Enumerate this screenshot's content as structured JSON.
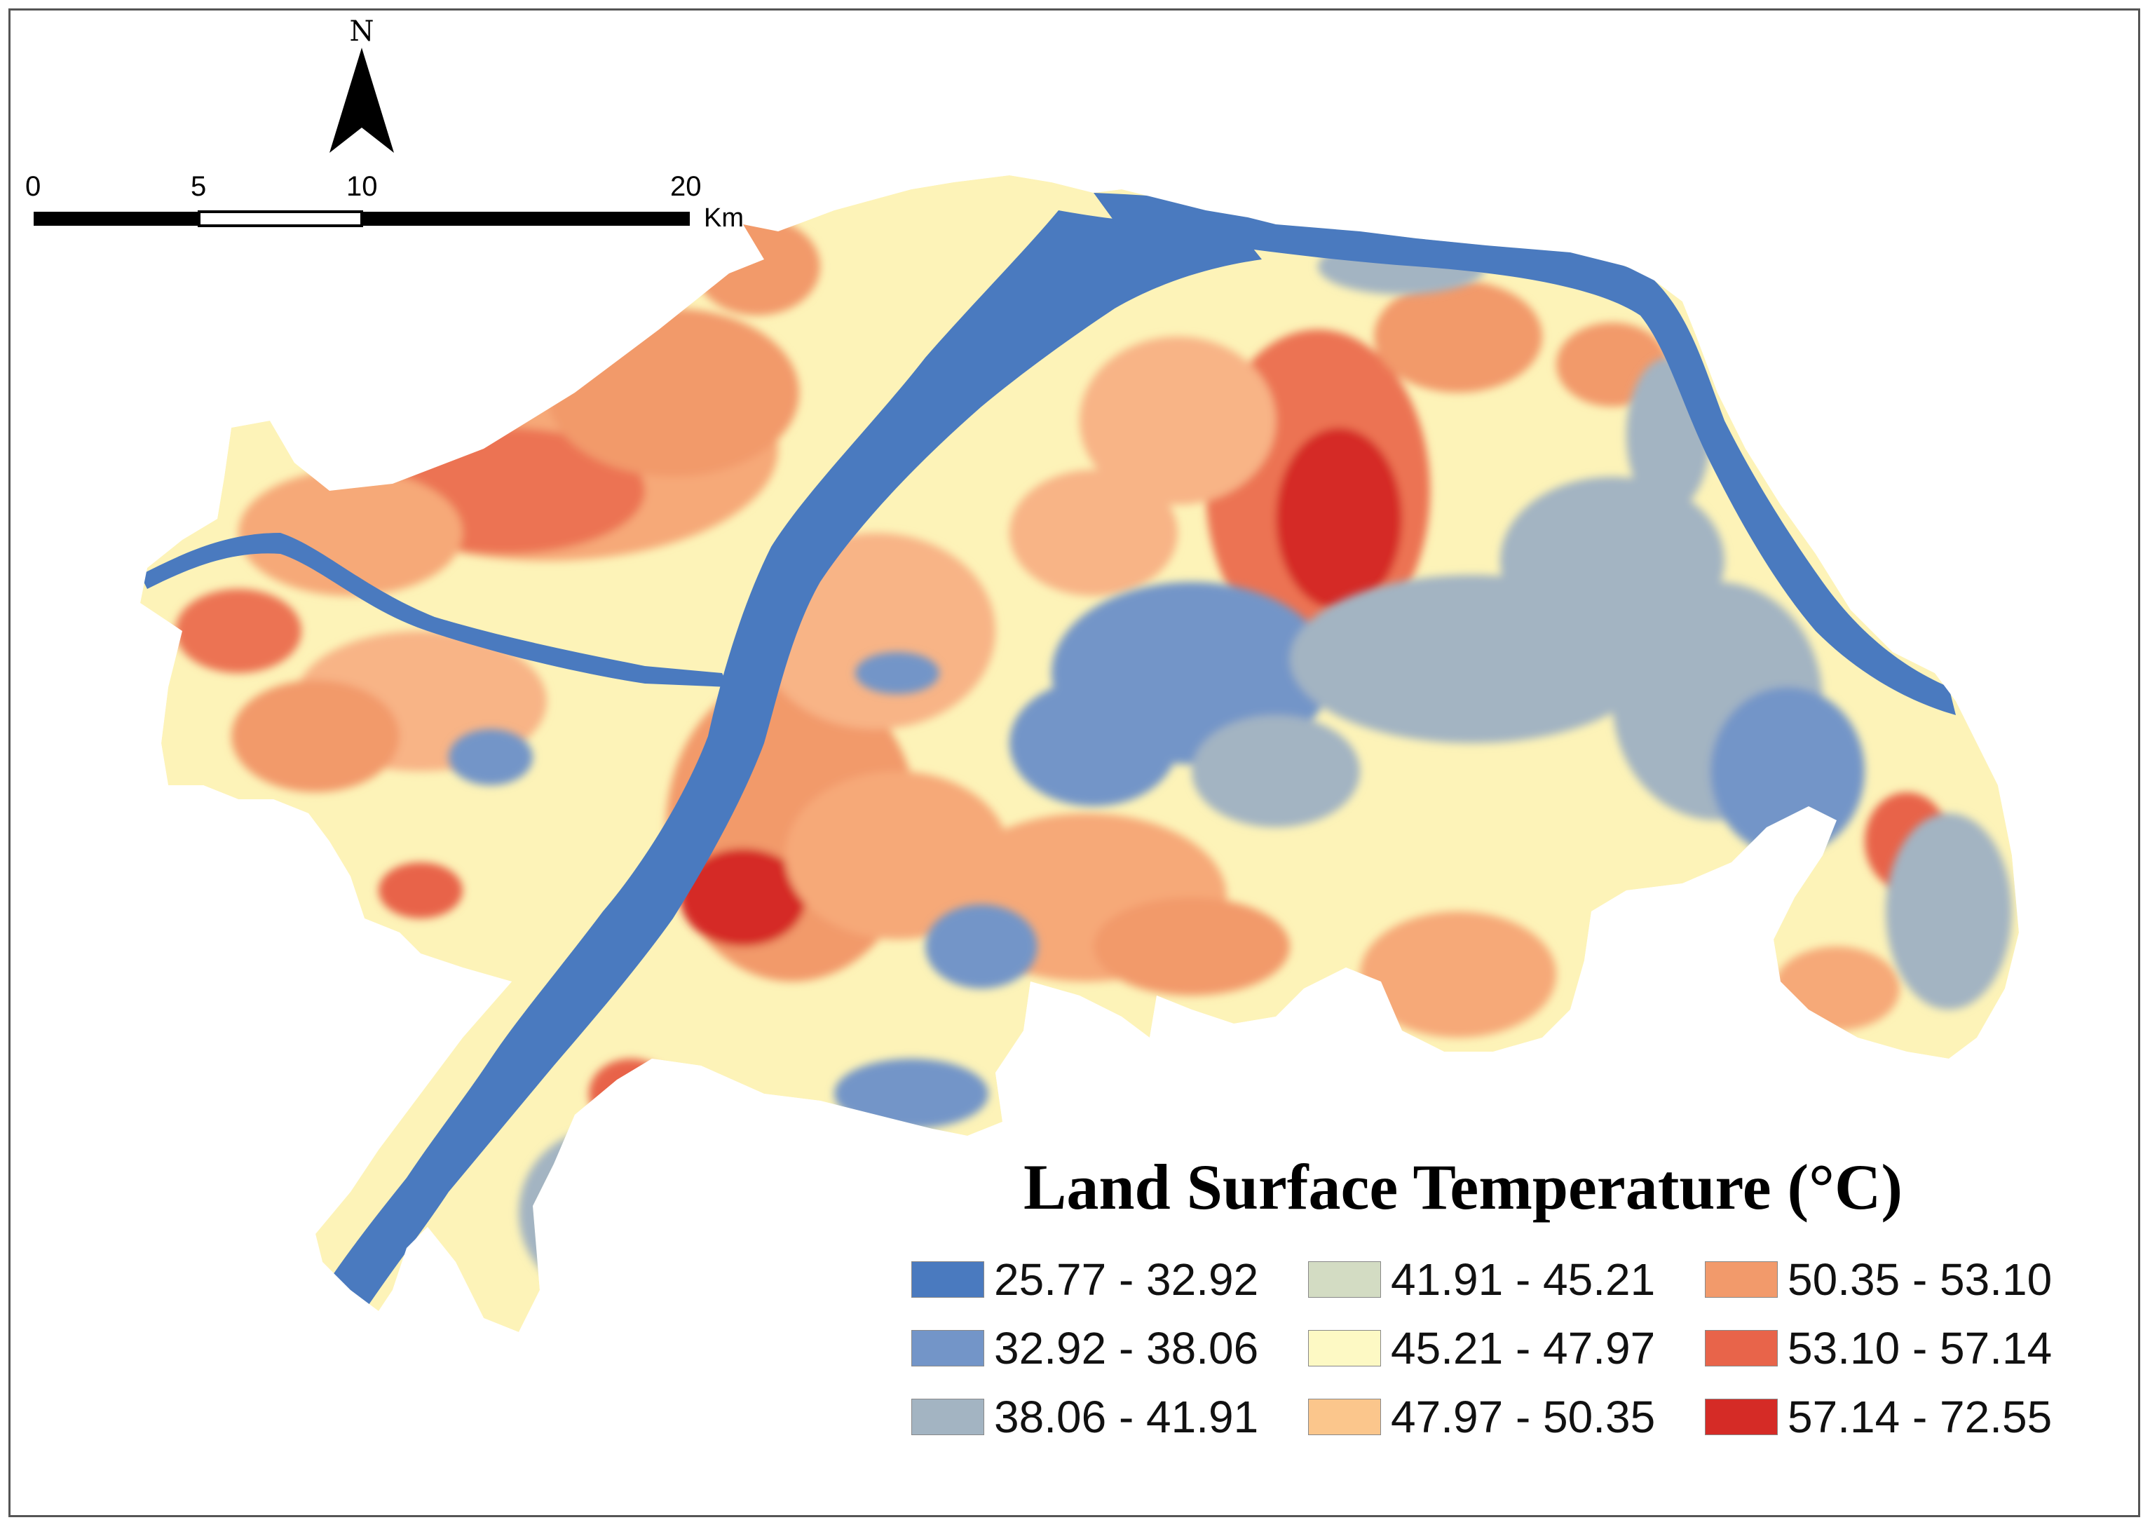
{
  "north_arrow": {
    "letter": "N"
  },
  "scale_bar": {
    "ticks": [
      "0",
      "5",
      "10",
      "20"
    ],
    "unit": "Km"
  },
  "legend": {
    "title": "Land Surface Temperature (°C)",
    "classes": [
      {
        "label": "25.77 - 32.92",
        "color": "#4a7abf"
      },
      {
        "label": "32.92 - 38.06",
        "color": "#7395c8"
      },
      {
        "label": "38.06 - 41.91",
        "color": "#a3b4c2"
      },
      {
        "label": "41.91 - 45.21",
        "color": "#d3dcc3"
      },
      {
        "label": "45.21 - 47.97",
        "color": "#fdf9c4"
      },
      {
        "label": "47.97 - 50.35",
        "color": "#fbc68c"
      },
      {
        "label": "50.35 - 53.10",
        "color": "#f29a6b"
      },
      {
        "label": "53.10 - 57.14",
        "color": "#e8644a"
      },
      {
        "label": "57.14 - 72.55",
        "color": "#d52b26"
      }
    ]
  }
}
